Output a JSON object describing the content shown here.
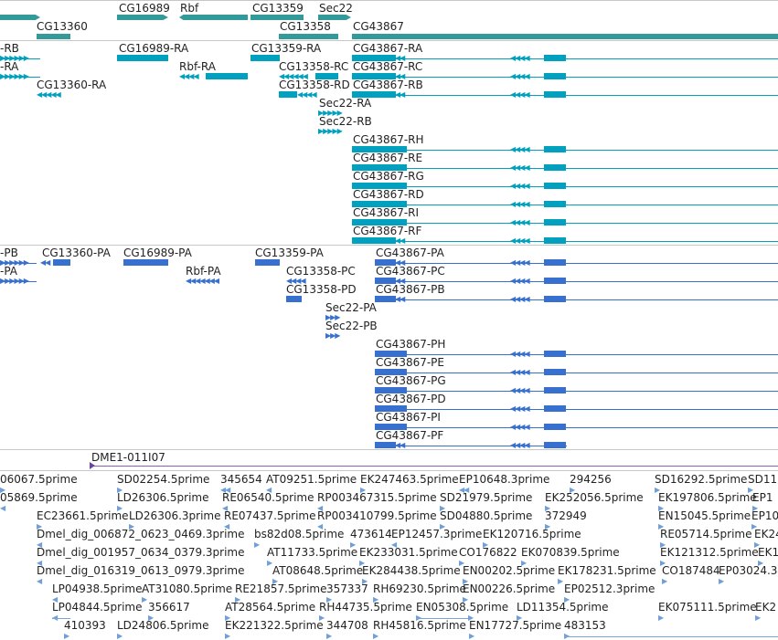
{
  "colors": {
    "gene": "#339999",
    "transcript": "#00a0bf",
    "protein": "#3870d0",
    "est": "#7aa6d6",
    "divider": "#c7c7c7"
  },
  "gene_track": {
    "labels": [
      "CG16989",
      "Rbf",
      "CG13359",
      "Sec22",
      "CG13360",
      "CG13358",
      "CG43867"
    ]
  },
  "transcript_track": {
    "labels": [
      "-RB",
      "-RA",
      "CG16989-RA",
      "CG13359-RA",
      "CG43867-RA",
      "Rbf-RA",
      "CG13358-RC",
      "CG43867-RC",
      "CG13360-RA",
      "CG13358-RD",
      "CG43867-RB",
      "Sec22-RA",
      "Sec22-RB",
      "CG43867-RH",
      "CG43867-RE",
      "CG43867-RG",
      "CG43867-RD",
      "CG43867-RI",
      "CG43867-RF"
    ]
  },
  "protein_track": {
    "labels": [
      "-PB",
      "CG13360-PA",
      "CG16989-PA",
      "CG13359-PA",
      "CG43867-PA",
      "-PA",
      "Rbf-PA",
      "CG13358-PC",
      "CG43867-PC",
      "CG13358-PD",
      "CG43867-PB",
      "Sec22-PA",
      "Sec22-PB",
      "CG43867-PH",
      "CG43867-PE",
      "CG43867-PG",
      "CG43867-PD",
      "CG43867-PI",
      "CG43867-PF"
    ]
  },
  "clone_track": {
    "labels": [
      "DME1-011I07"
    ]
  },
  "est_track": {
    "labels": [
      "06067.5prime",
      "SD02254.5prime",
      "345654",
      "AT09251.5prime",
      "EK247463.5prime",
      "EP10648.3prime",
      "294256",
      "SD16292.5prime",
      "SD11",
      "05869.5prime",
      "LD26306.5prime",
      "RE06540.5prime",
      "RP003467315.5prime",
      "SD21979.5prime",
      "EK252056.5prime",
      "EK197806.5prime",
      "EP1",
      "EC23661.5prime",
      "LD26306.3prime",
      "RE07437.5prime",
      "RP003410799.5prime",
      "SD04880.5prime",
      "372949",
      "EN15045.5prime",
      "EP10",
      "Dmel_dig_006872_0623_0469.3prime",
      "bs82d08.5prime",
      "473614",
      "EP12457.3prime",
      "EK120716.5prime",
      "RE05714.5prime",
      "EK24",
      "Dmel_dig_001957_0634_0379.3prime",
      "AT11733.5prime",
      "EK233031.5prime",
      "CO176822",
      "EK070839.5prime",
      "EK121312.5prime",
      "EK1",
      "Dmel_dig_016319_0613_0979.3prime",
      "AT08648.5prime",
      "EK284438.5prime",
      "EN00202.5prime",
      "EK178231.5prime",
      "CO187484",
      "EP03024.3",
      "LP04938.5prime",
      "AT31080.5prime",
      "RE21857.5prime",
      "357337",
      "RH69230.5prime",
      "EN00226.5prime",
      "EP02512.3prime",
      "LP04844.5prime",
      "356617",
      "AT28564.5prime",
      "RH44735.5prime",
      "EN05308.5prime",
      "LD11354.5prime",
      "EK075111.5prime",
      "EK2",
      "410393",
      "LD24806.5prime",
      "EK221322.5prime",
      "344708",
      "RH45816.5prime",
      "EN17727.5prime",
      "483153"
    ]
  }
}
